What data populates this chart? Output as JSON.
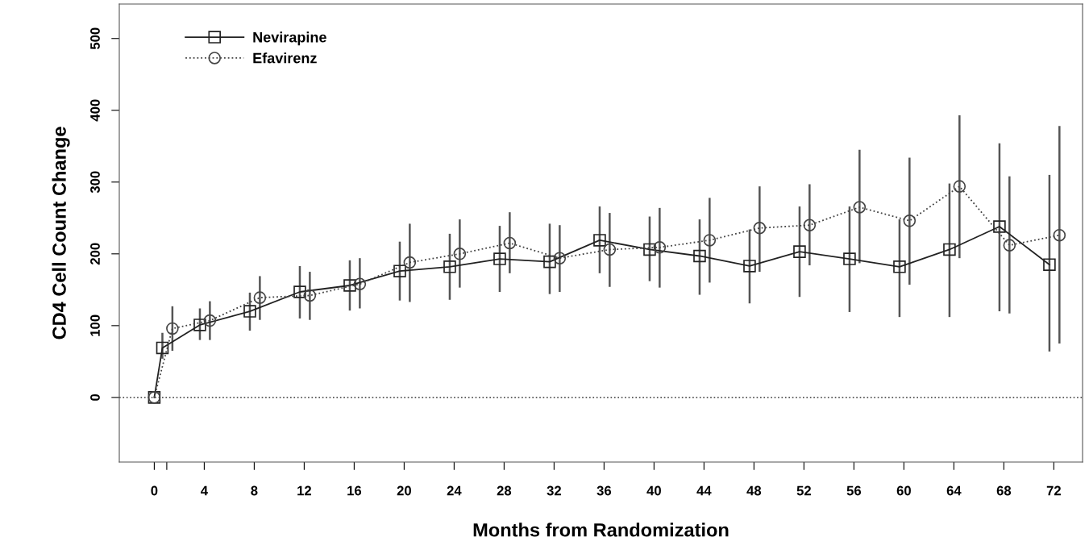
{
  "chart_data": {
    "type": "line",
    "xlabel": "Months from Randomization",
    "ylabel": "CD4 Cell Count Change",
    "xlim": [
      -2.8,
      74.3
    ],
    "ylim": [
      -90,
      548
    ],
    "xticks": [
      0,
      {
        "value": 1,
        "label": null
      },
      4,
      8,
      12,
      16,
      20,
      24,
      28,
      32,
      36,
      40,
      44,
      48,
      52,
      56,
      60,
      64,
      68,
      72
    ],
    "yticks": [
      0,
      100,
      200,
      300,
      400,
      500
    ],
    "grid": false,
    "legend": "top left",
    "ref_lines": [
      {
        "axis": "y",
        "value": 0,
        "line_style": "dotted",
        "color": "#555555"
      }
    ],
    "series": [
      {
        "name": "Nevirapine",
        "color": "#222222",
        "marker": "square",
        "line_style": "solid",
        "x": [
          0,
          0.65,
          3.65,
          7.65,
          11.65,
          15.65,
          19.65,
          23.65,
          27.65,
          31.65,
          35.65,
          39.65,
          43.65,
          47.65,
          51.65,
          55.65,
          59.65,
          63.65,
          67.65,
          71.65
        ],
        "values": [
          0,
          69,
          101,
          120,
          147,
          156,
          176,
          182,
          193,
          189,
          219,
          206,
          197,
          183,
          203,
          193,
          182,
          206,
          238,
          185
        ],
        "errors": [
          null,
          [
            54,
            90
          ],
          [
            80,
            124
          ],
          [
            93,
            146
          ],
          [
            110,
            183
          ],
          [
            121,
            191
          ],
          [
            135,
            217
          ],
          [
            136,
            228
          ],
          [
            147,
            239
          ],
          [
            144,
            242
          ],
          [
            173,
            266
          ],
          [
            162,
            252
          ],
          [
            143,
            248
          ],
          [
            131,
            234
          ],
          [
            140,
            266
          ],
          [
            119,
            266
          ],
          [
            112,
            248
          ],
          [
            112,
            298
          ],
          [
            120,
            354
          ],
          [
            64,
            310
          ]
        ]
      },
      {
        "name": "Efavirenz",
        "color": "#444444",
        "marker": "circle",
        "line_style": "dotted",
        "x": [
          0,
          1.45,
          4.45,
          8.45,
          12.45,
          16.45,
          20.45,
          24.45,
          28.45,
          32.45,
          36.45,
          40.45,
          44.45,
          48.45,
          52.45,
          56.45,
          60.45,
          64.45,
          68.45,
          72.45
        ],
        "values": [
          0,
          96,
          107,
          139,
          142,
          158,
          188,
          200,
          215,
          194,
          206,
          209,
          219,
          236,
          240,
          265,
          246,
          294,
          212,
          226
        ],
        "errors": [
          null,
          [
            65,
            127
          ],
          [
            80,
            134
          ],
          [
            108,
            169
          ],
          [
            108,
            175
          ],
          [
            124,
            194
          ],
          [
            133,
            242
          ],
          [
            153,
            248
          ],
          [
            173,
            258
          ],
          [
            147,
            240
          ],
          [
            154,
            257
          ],
          [
            153,
            264
          ],
          [
            160,
            278
          ],
          [
            175,
            294
          ],
          [
            184,
            297
          ],
          [
            187,
            345
          ],
          [
            157,
            334
          ],
          [
            194,
            393
          ],
          [
            117,
            308
          ],
          [
            75,
            378
          ]
        ]
      }
    ]
  }
}
